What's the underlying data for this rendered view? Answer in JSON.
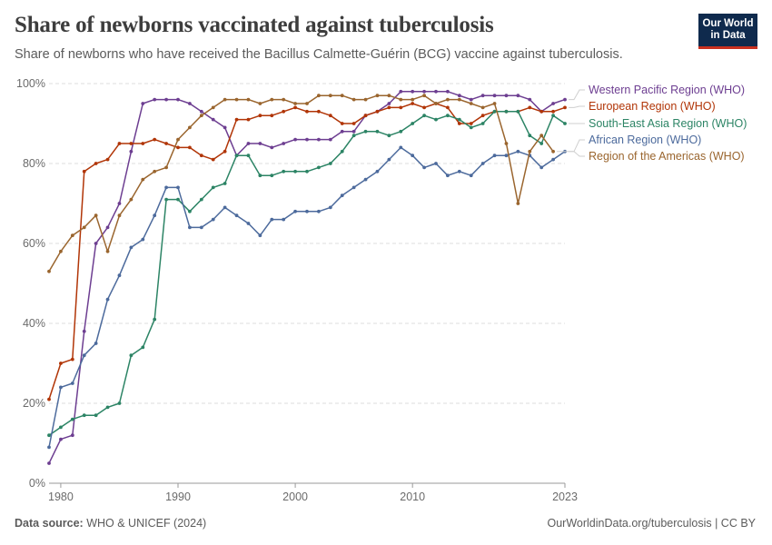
{
  "header": {
    "title": "Share of newborns vaccinated against tuberculosis",
    "subtitle": "Share of newborns who have received the Bacillus Calmette-Guérin (BCG) vaccine against tuberculosis."
  },
  "logo": {
    "line1": "Our World",
    "line2": "in Data"
  },
  "footer": {
    "source_label": "Data source:",
    "source_value": "WHO & UNICEF (2024)",
    "right": "OurWorldinData.org/tuberculosis | CC BY"
  },
  "chart_data": {
    "type": "line",
    "title": "Share of newborns vaccinated against tuberculosis",
    "xlim": [
      1979,
      2023
    ],
    "ylim": [
      0,
      100
    ],
    "x_ticks": [
      1980,
      1990,
      2000,
      2010,
      2023
    ],
    "y_ticks": [
      0,
      20,
      40,
      60,
      80,
      100
    ],
    "y_tick_labels": [
      "0%",
      "20%",
      "40%",
      "60%",
      "80%",
      "100%"
    ],
    "grid": "horizontal dashed",
    "legend": "right, labels at line ends",
    "x": [
      1979,
      1980,
      1981,
      1982,
      1983,
      1984,
      1985,
      1986,
      1987,
      1988,
      1989,
      1990,
      1991,
      1992,
      1993,
      1994,
      1995,
      1996,
      1997,
      1998,
      1999,
      2000,
      2001,
      2002,
      2003,
      2004,
      2005,
      2006,
      2007,
      2008,
      2009,
      2010,
      2011,
      2012,
      2013,
      2014,
      2015,
      2016,
      2017,
      2018,
      2019,
      2020,
      2021,
      2022,
      2023
    ],
    "series": [
      {
        "name": "Western Pacific Region (WHO)",
        "color": "#6d3e91",
        "values": [
          5,
          11,
          12,
          38,
          60,
          64,
          70,
          83,
          95,
          96,
          96,
          96,
          95,
          93,
          91,
          89,
          82,
          85,
          85,
          84,
          85,
          86,
          86,
          86,
          86,
          88,
          88,
          92,
          93,
          95,
          98,
          98,
          98,
          98,
          98,
          97,
          96,
          97,
          97,
          97,
          97,
          96,
          93,
          95,
          96
        ]
      },
      {
        "name": "European Region (WHO)",
        "color": "#b13507",
        "values": [
          21,
          30,
          31,
          78,
          80,
          81,
          85,
          85,
          85,
          86,
          85,
          84,
          84,
          82,
          81,
          83,
          91,
          91,
          92,
          92,
          93,
          94,
          93,
          93,
          92,
          90,
          90,
          92,
          93,
          94,
          94,
          95,
          94,
          95,
          94,
          90,
          90,
          92,
          93,
          93,
          93,
          94,
          93,
          93,
          94
        ]
      },
      {
        "name": "South-East Asia Region (WHO)",
        "color": "#2c8465",
        "values": [
          12,
          14,
          16,
          17,
          17,
          19,
          20,
          32,
          34,
          41,
          71,
          71,
          68,
          71,
          74,
          75,
          82,
          82,
          77,
          77,
          78,
          78,
          78,
          79,
          80,
          83,
          87,
          88,
          88,
          87,
          88,
          90,
          92,
          91,
          92,
          91,
          89,
          90,
          93,
          93,
          93,
          87,
          85,
          92,
          90
        ]
      },
      {
        "name": "African Region (WHO)",
        "color": "#4c6a9c",
        "values": [
          9,
          24,
          25,
          32,
          35,
          46,
          52,
          59,
          61,
          67,
          74,
          74,
          64,
          64,
          66,
          69,
          67,
          65,
          62,
          66,
          66,
          68,
          68,
          68,
          69,
          72,
          74,
          76,
          78,
          81,
          84,
          82,
          79,
          80,
          77,
          78,
          77,
          80,
          82,
          82,
          83,
          82,
          79,
          81,
          83
        ]
      },
      {
        "name": "Region of the Americas (WHO)",
        "color": "#9a652e",
        "values": [
          53,
          58,
          62,
          64,
          67,
          58,
          67,
          71,
          76,
          78,
          79,
          86,
          89,
          92,
          94,
          96,
          96,
          96,
          95,
          96,
          96,
          95,
          95,
          97,
          97,
          97,
          96,
          96,
          97,
          97,
          96,
          96,
          97,
          95,
          96,
          96,
          95,
          94,
          95,
          85,
          70,
          83,
          87,
          83,
          null
        ]
      }
    ]
  }
}
